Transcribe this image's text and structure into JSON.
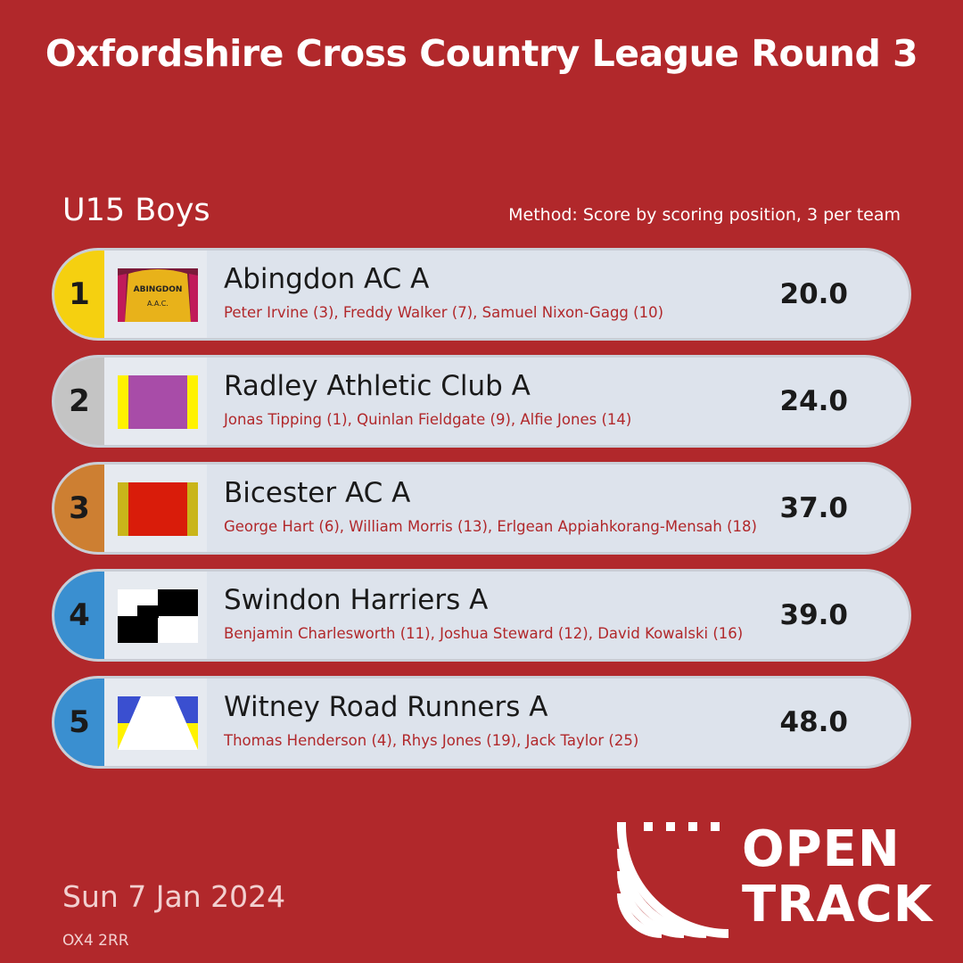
{
  "title": "Oxfordshire Cross Country League Round 3",
  "event": "U15 Boys",
  "method": "Method: Score by scoring position, 3 per team",
  "teams": [
    {
      "rank": "1",
      "name": "Abingdon AC A",
      "members": "Peter Irvine (3), Freddy Walker (7), Samuel Nixon-Gagg (10)",
      "score": "20.0",
      "rank_color": "#f5d010",
      "vest": "abingdon-vest",
      "vest_text": "ABINGDON A.A.C."
    },
    {
      "rank": "2",
      "name": "Radley Athletic Club A",
      "members": "Jonas Tipping (1), Quinlan Fieldgate (9), Alfie Jones (14)",
      "score": "24.0",
      "rank_color": "#c4c4c4",
      "vest": "radley-vest"
    },
    {
      "rank": "3",
      "name": "Bicester AC A",
      "members": "George Hart (6), William Morris (13), Erlgean Appiahkorang-Mensah (18)",
      "score": "37.0",
      "rank_color": "#cd7f32",
      "vest": "bicester-vest"
    },
    {
      "rank": "4",
      "name": "Swindon Harriers A",
      "members": "Benjamin Charlesworth (11), Joshua Steward (12), David Kowalski (16)",
      "score": "39.0",
      "rank_color": "#3a8fd0",
      "vest": "swindon-vest"
    },
    {
      "rank": "5",
      "name": "Witney Road Runners A",
      "members": "Thomas Henderson (4), Rhys Jones (19), Jack Taylor (25)",
      "score": "48.0",
      "rank_color": "#3a8fd0",
      "vest": "witney-vest"
    }
  ],
  "date": "Sun 7 Jan 2024",
  "postcode": "OX4 2RR",
  "logo": {
    "line1": "OPEN",
    "line2": "TRACK"
  }
}
